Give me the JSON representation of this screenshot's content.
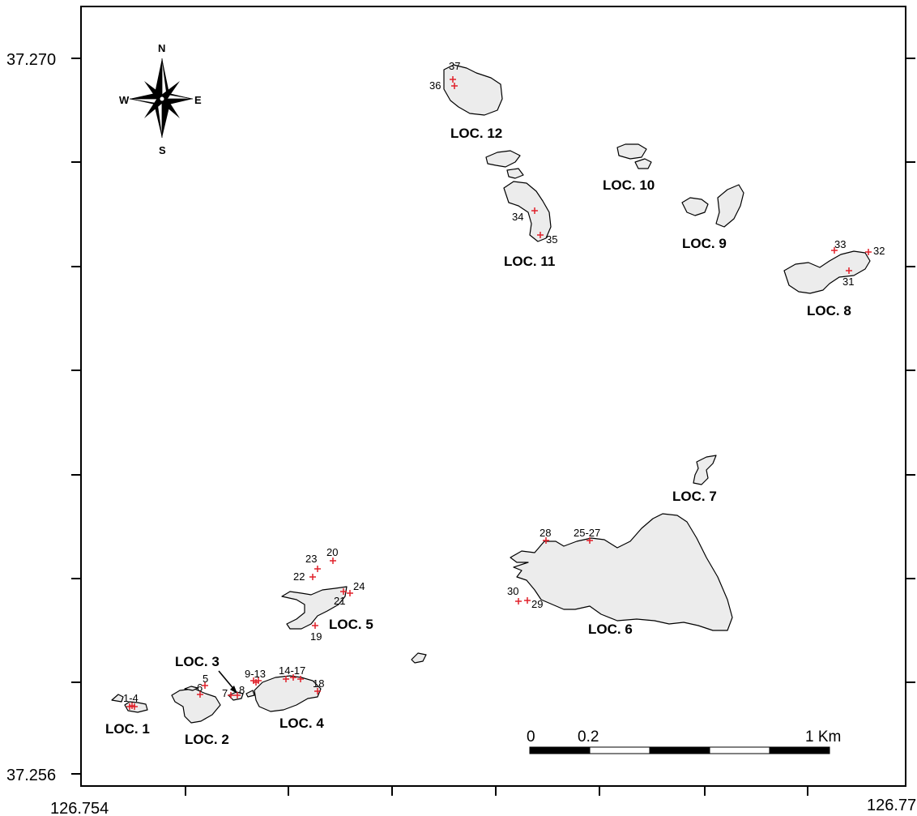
{
  "coordinates": {
    "lat_top": "37.270",
    "lat_bottom": "37.256",
    "lon_left": "126.754",
    "lon_right": "126.77"
  },
  "compass": {
    "n": "N",
    "s": "S",
    "e": "E",
    "w": "W"
  },
  "locations": [
    {
      "id": "loc1",
      "label": "LOC. 1"
    },
    {
      "id": "loc2",
      "label": "LOC. 2"
    },
    {
      "id": "loc3",
      "label": "LOC. 3"
    },
    {
      "id": "loc4",
      "label": "LOC. 4"
    },
    {
      "id": "loc5",
      "label": "LOC. 5"
    },
    {
      "id": "loc6",
      "label": "LOC. 6"
    },
    {
      "id": "loc7",
      "label": "LOC. 7"
    },
    {
      "id": "loc8",
      "label": "LOC. 8"
    },
    {
      "id": "loc9",
      "label": "LOC. 9"
    },
    {
      "id": "loc10",
      "label": "LOC. 10"
    },
    {
      "id": "loc11",
      "label": "LOC. 11"
    },
    {
      "id": "loc12",
      "label": "LOC. 12"
    }
  ],
  "sample_labels": [
    "1-4",
    "5",
    "6",
    "7",
    "8",
    "9-13",
    "14-17",
    "18",
    "19",
    "20",
    "21",
    "22",
    "23",
    "24",
    "25-27",
    "28",
    "29",
    "30",
    "31",
    "32",
    "33",
    "34",
    "35",
    "36",
    "37"
  ],
  "scale_bar": {
    "zero": "0",
    "mid": "0.2",
    "end": "1 Km"
  },
  "colors": {
    "island_fill": "#ececec",
    "outline": "#000000",
    "sample_marker": "#e0202a"
  }
}
